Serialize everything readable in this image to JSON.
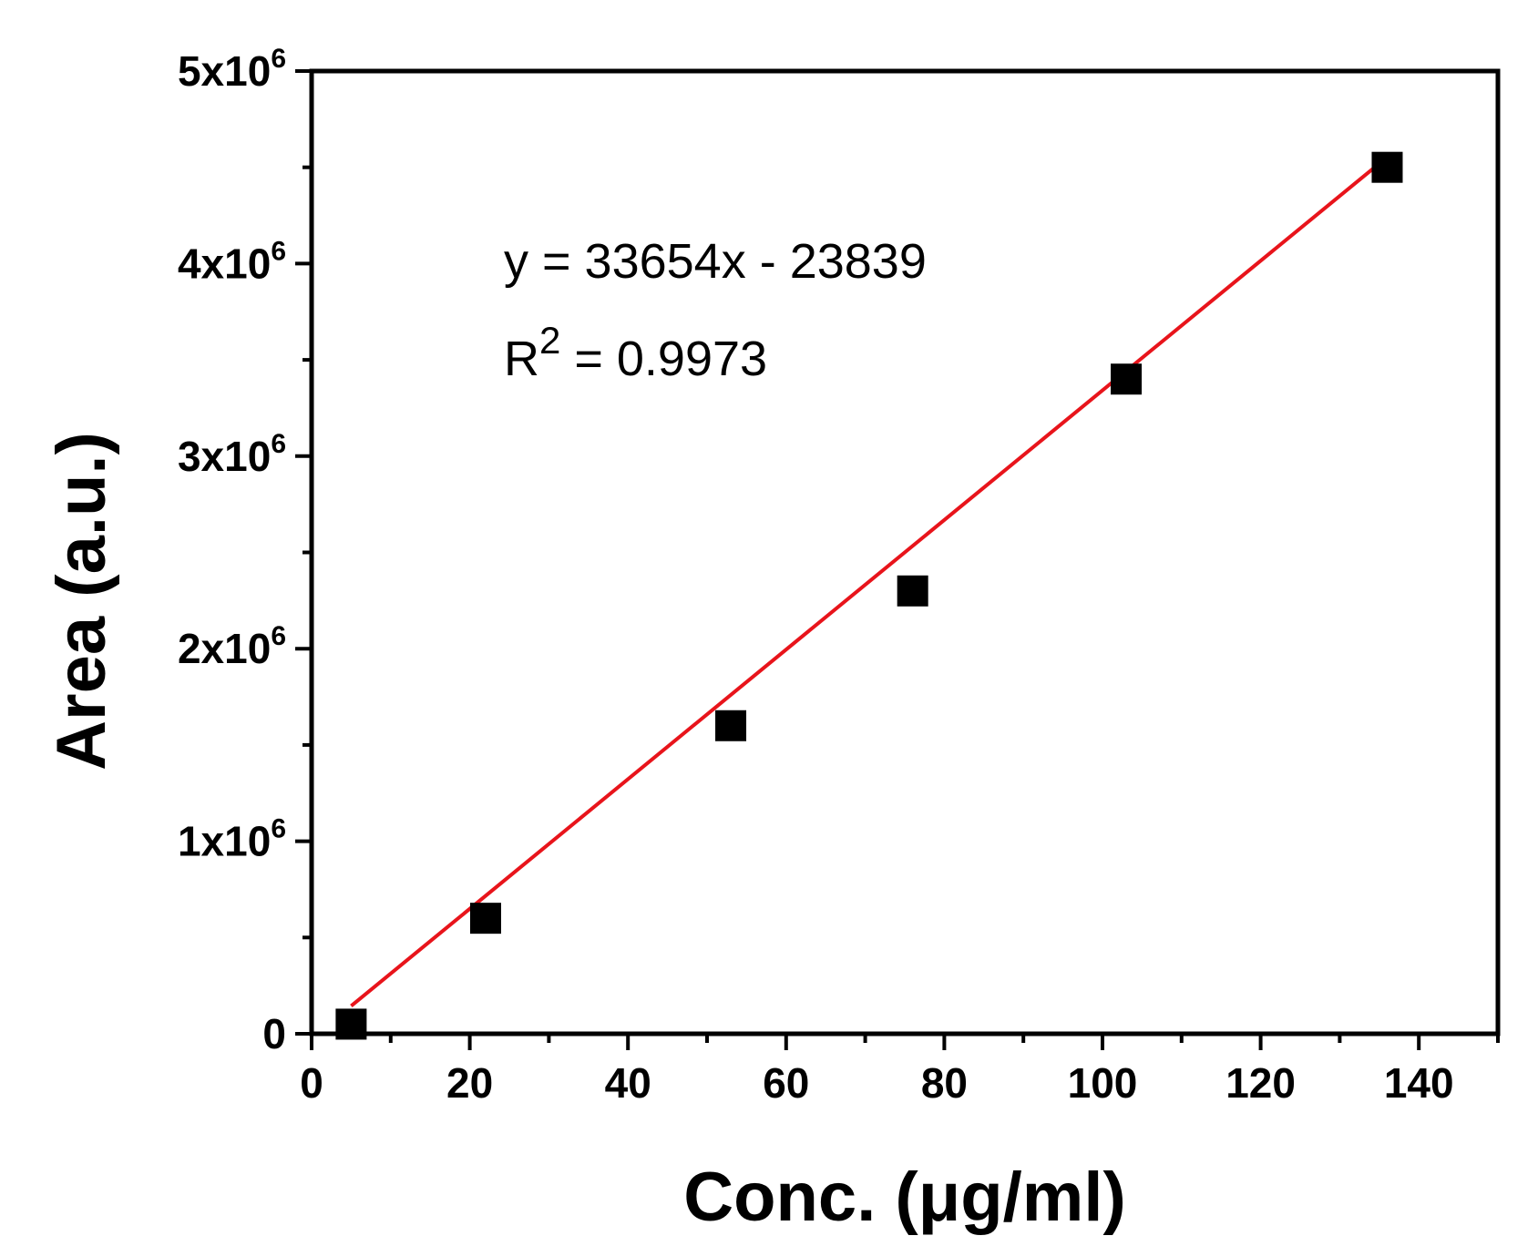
{
  "chart_data": {
    "type": "scatter",
    "xlabel": "Conc. (μg/ml)",
    "ylabel": "Area (a.u.)",
    "xlim": [
      0,
      150
    ],
    "ylim": [
      0,
      5000000
    ],
    "x_ticks": [
      0,
      20,
      40,
      60,
      80,
      100,
      120,
      140
    ],
    "x_tick_labels": [
      "0",
      "20",
      "40",
      "60",
      "80",
      "100",
      "120",
      "140"
    ],
    "y_ticks": [
      0,
      1000000,
      2000000,
      3000000,
      4000000,
      5000000
    ],
    "y_tick_labels": [
      {
        "base": "0",
        "exp": ""
      },
      {
        "base": "1x10",
        "exp": "6"
      },
      {
        "base": "2x10",
        "exp": "6"
      },
      {
        "base": "3x10",
        "exp": "6"
      },
      {
        "base": "4x10",
        "exp": "6"
      },
      {
        "base": "5x10",
        "exp": "6"
      }
    ],
    "grid": false,
    "series": [
      {
        "marker": "square",
        "color": "#000000",
        "points": [
          {
            "x": 5,
            "y": 50000
          },
          {
            "x": 22,
            "y": 600000
          },
          {
            "x": 53,
            "y": 1600000
          },
          {
            "x": 76,
            "y": 2300000
          },
          {
            "x": 103,
            "y": 3400000
          },
          {
            "x": 136,
            "y": 4500000
          }
        ]
      }
    ],
    "fit_line": {
      "color": "#e8141b",
      "slope": 33654,
      "intercept": -23839,
      "x_range": [
        5,
        136
      ]
    },
    "annotations": {
      "equation": "y = 33654x - 23839",
      "r2_prefix": "R",
      "r2_sup": "2",
      "r2_value": " = 0.9973"
    }
  }
}
